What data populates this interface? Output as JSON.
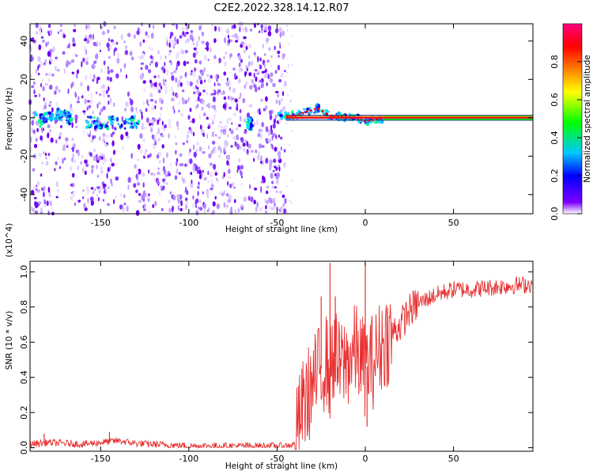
{
  "chart_data": [
    {
      "type": "heatmap",
      "title": "C2E2.2022.328.14.12.R07",
      "xlabel": "Height of straight line (km)",
      "ylabel": "Frequency (Hz)",
      "xlim": [
        -190,
        95
      ],
      "ylim": [
        -50,
        49
      ],
      "xticks": [
        -150,
        -100,
        -50,
        0,
        50
      ],
      "xtick_labels": [
        "-150",
        "-100",
        "-50",
        "0",
        "50"
      ],
      "yticks": [
        40,
        20,
        0,
        -20,
        -40
      ],
      "ytick_labels": [
        "40",
        "20",
        "0",
        "-20",
        "-40"
      ],
      "colorbar": {
        "label": "Normalized spectral amplitude",
        "range": [
          0,
          1
        ],
        "ticks": [
          0.0,
          0.2,
          0.4,
          0.6,
          0.8
        ],
        "tick_labels": [
          "0.0",
          "0.2",
          "0.4",
          "0.6",
          "0.8"
        ],
        "colors": [
          "#ffffff",
          "#7b00ff",
          "#0000ff",
          "#00c8ff",
          "#00ff00",
          "#ffff00",
          "#ff8000",
          "#ff0000",
          "#ff0080"
        ]
      },
      "noise_region_km": [
        -190,
        -45
      ],
      "signal_trace": [
        {
          "x": -185,
          "y": -2
        },
        {
          "x": -175,
          "y": 2
        },
        {
          "x": -160,
          "y": -2
        },
        {
          "x": -140,
          "y": -3
        },
        {
          "x": -130,
          "y": -2
        },
        {
          "x": -65,
          "y": -3
        },
        {
          "x": -50,
          "y": 1
        },
        {
          "x": -40,
          "y": 1
        },
        {
          "x": -27,
          "y": 5
        },
        {
          "x": -20,
          "y": 1
        },
        {
          "x": -5,
          "y": 0
        },
        {
          "x": 0,
          "y": -2
        },
        {
          "x": 10,
          "y": 0
        },
        {
          "x": 95,
          "y": 0
        }
      ]
    },
    {
      "type": "line",
      "xlabel": "Height of straight line (km)",
      "ylabel": "SNR (10 * v/v)",
      "y_multiplier": "(x10^4)",
      "xlim": [
        -190,
        95
      ],
      "ylim": [
        -0.02,
        1.06
      ],
      "xticks": [
        -150,
        -100,
        -50,
        0,
        50
      ],
      "xtick_labels": [
        "-150",
        "-100",
        "-50",
        "0",
        "50"
      ],
      "yticks": [
        0.0,
        0.2,
        0.4,
        0.6,
        0.8,
        1.0
      ],
      "ytick_labels": [
        "0.0",
        "0.2",
        "0.4",
        "0.6",
        "0.8",
        "1.0"
      ],
      "series": [
        {
          "name": "SNR",
          "color": "#e83030",
          "x": [
            -190,
            -180,
            -170,
            -160,
            -150,
            -140,
            -130,
            -120,
            -110,
            -100,
            -90,
            -80,
            -70,
            -60,
            -50,
            -45,
            -40,
            -38,
            -35,
            -30,
            -25,
            -22,
            -20,
            -18,
            -15,
            -10,
            -5,
            0,
            5,
            10,
            15,
            20,
            25,
            30,
            40,
            50,
            60,
            70,
            80,
            95
          ],
          "values": [
            0.02,
            0.03,
            0.025,
            0.02,
            0.03,
            0.04,
            0.025,
            0.02,
            0.015,
            0.01,
            0.01,
            0.01,
            0.01,
            0.01,
            0.01,
            0.01,
            0.02,
            0.12,
            0.25,
            0.35,
            0.45,
            0.5,
            0.4,
            0.55,
            0.45,
            0.5,
            0.55,
            0.45,
            0.5,
            0.6,
            0.65,
            0.7,
            0.78,
            0.82,
            0.87,
            0.9,
            0.9,
            0.91,
            0.92,
            0.93
          ]
        }
      ],
      "spikes": [
        {
          "x": -20,
          "y": 1.05
        },
        {
          "x": -25,
          "y": 0.86
        },
        {
          "x": -17,
          "y": 0.86
        },
        {
          "x": 0,
          "y": 1.05
        },
        {
          "x": 1,
          "y": 0.12
        },
        {
          "x": -145,
          "y": 0.09
        },
        {
          "x": -182,
          "y": 0.08
        }
      ]
    }
  ]
}
